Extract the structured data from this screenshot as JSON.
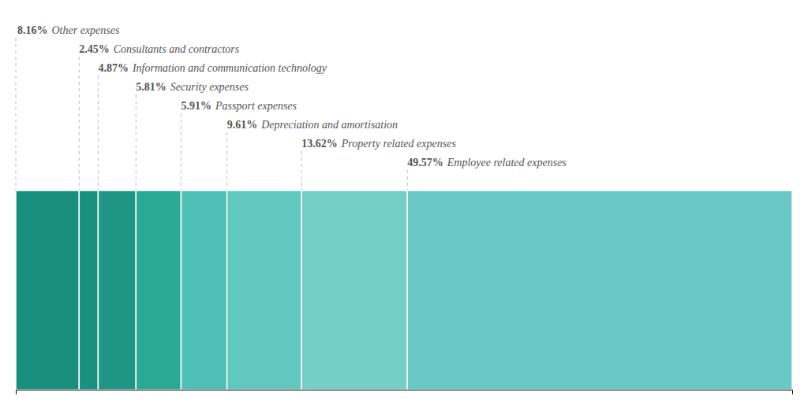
{
  "chart_data": {
    "type": "bar",
    "orientation": "horizontal",
    "stacked": true,
    "categories": [
      "Other expenses",
      "Consultants and contractors",
      "Information and communication technology",
      "Security expenses",
      "Passport expenses",
      "Depreciation and amortisation",
      "Property related expenses",
      "Employee related expenses"
    ],
    "values": [
      8.16,
      2.45,
      4.87,
      5.81,
      5.91,
      9.61,
      13.62,
      49.57
    ],
    "value_labels": [
      "8.16%",
      "2.45%",
      "4.87%",
      "5.81%",
      "5.91%",
      "9.61%",
      "13.62%",
      "49.57%"
    ],
    "colors": [
      "#1a8f80",
      "#1a9080",
      "#1e9585",
      "#2aaa96",
      "#4dbfb5",
      "#60c8be",
      "#74cfc6",
      "#6ac8c5"
    ],
    "data_labels": true,
    "grid": false,
    "tick_labels": false,
    "xlim": [
      0,
      100
    ]
  }
}
